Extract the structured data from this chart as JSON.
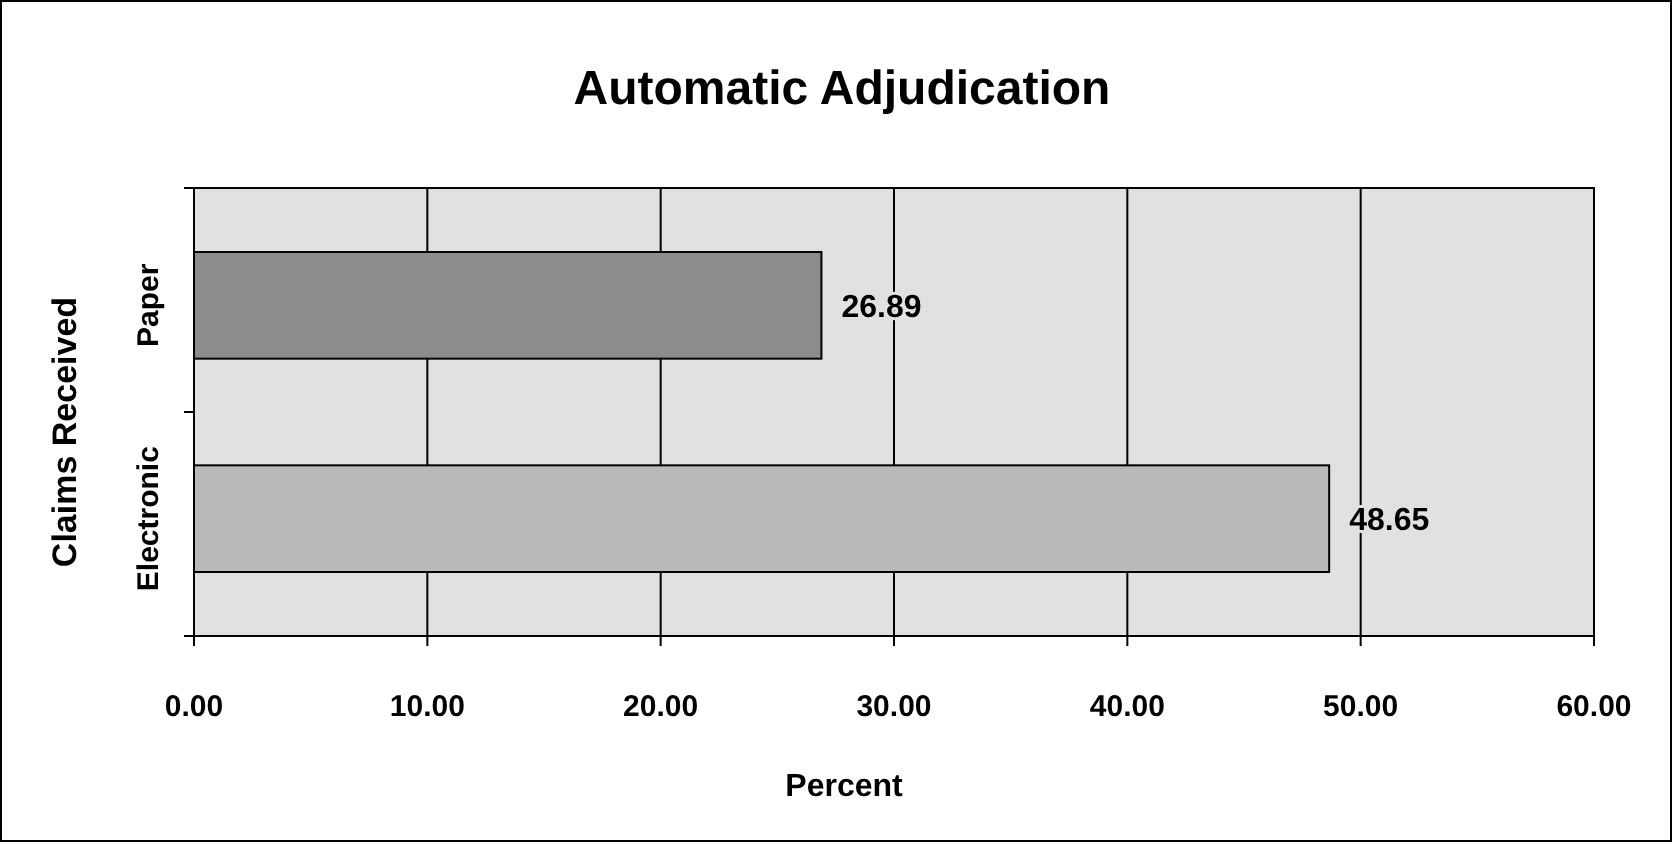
{
  "chart_data": {
    "type": "bar",
    "orientation": "horizontal",
    "title": "Automatic Adjudication",
    "xlabel": "Percent",
    "ylabel": "Claims Received",
    "categories": [
      "Paper",
      "Electronic"
    ],
    "values": [
      26.89,
      48.65
    ],
    "colors": [
      "#8c8c8c",
      "#b9b9bc"
    ],
    "xlim": [
      0,
      60
    ],
    "xticks": [
      {
        "value": 0,
        "label": "0.00"
      },
      {
        "value": 10,
        "label": "10.00"
      },
      {
        "value": 20,
        "label": "20.00"
      },
      {
        "value": 30,
        "label": "30.00"
      },
      {
        "value": 40,
        "label": "40.00"
      },
      {
        "value": 50,
        "label": "50.00"
      },
      {
        "value": 60,
        "label": "60.00"
      }
    ],
    "grid": "x",
    "data_labels": true
  }
}
